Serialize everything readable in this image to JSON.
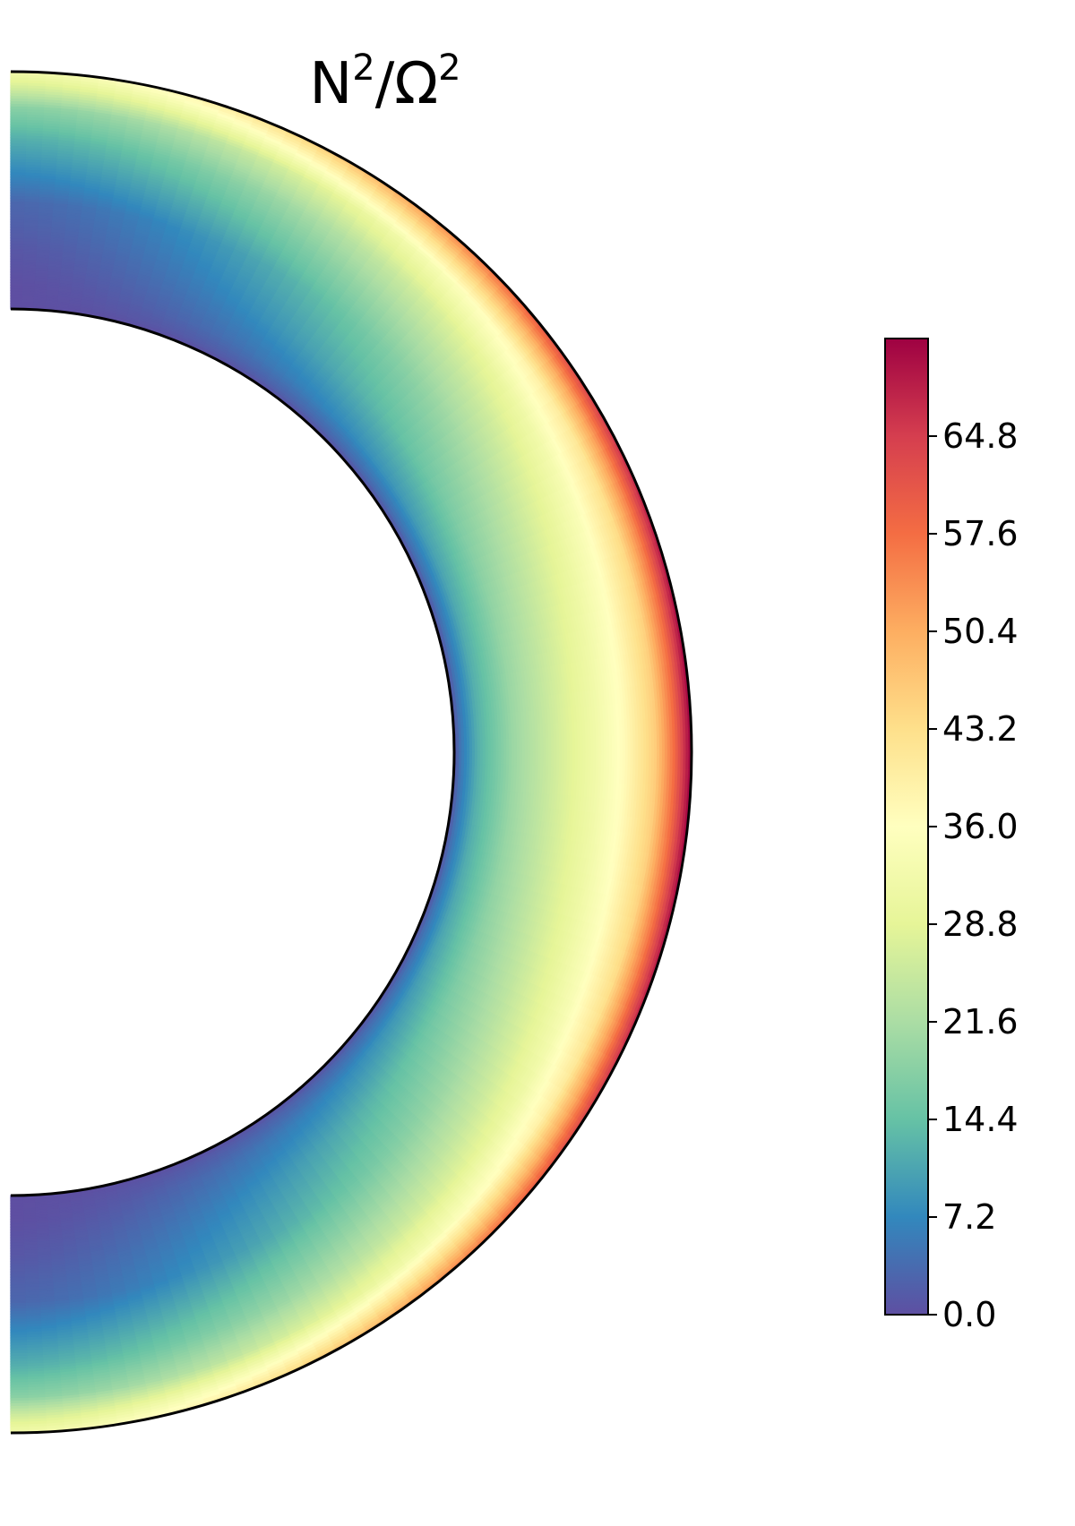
{
  "chart_data": {
    "type": "heatmap",
    "subtype": "meridional-half-annulus",
    "title": {
      "base1": "N",
      "sup1": "2",
      "sep": "/Ω",
      "sup2": "2"
    },
    "colormap": "Spectral_r",
    "colormap_stops": [
      "#5e4fa2",
      "#3288bd",
      "#66c2a5",
      "#abdda4",
      "#e6f598",
      "#ffffbf",
      "#fee08b",
      "#fdae61",
      "#f46d43",
      "#d53e4f",
      "#9e0142"
    ],
    "colorbar": {
      "vmin": 0.0,
      "vmax": 72.0,
      "ticks": [
        "0.0",
        "7.2",
        "14.4",
        "21.6",
        "28.8",
        "36.0",
        "43.2",
        "50.4",
        "57.6",
        "64.8"
      ]
    },
    "radial_profile": {
      "r_fraction": [
        0.0,
        0.03,
        0.1,
        0.25,
        0.45,
        0.6,
        0.72,
        0.85,
        0.93,
        1.0
      ],
      "value_equator": [
        0.0,
        5.0,
        12.0,
        20.0,
        27.0,
        32.0,
        37.0,
        46.0,
        58.0,
        72.0
      ],
      "value_pole": [
        0.0,
        0.0,
        0.0,
        1.0,
        3.0,
        8.0,
        12.0,
        18.0,
        26.0,
        32.0
      ]
    }
  }
}
